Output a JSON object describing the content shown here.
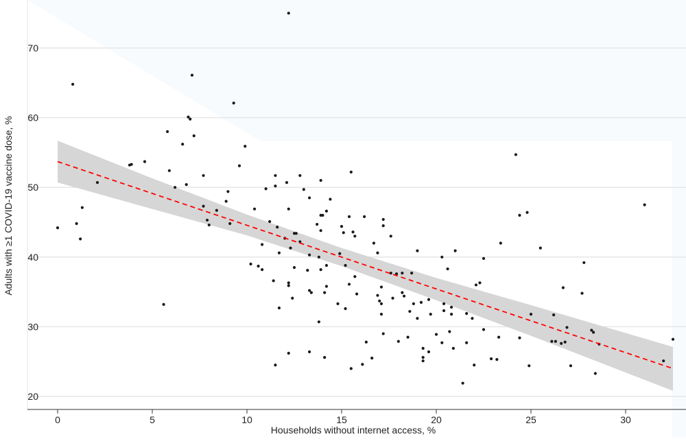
{
  "chart_data": {
    "type": "scatter",
    "title": "",
    "xlabel": "Households without internet access, %",
    "ylabel": "Adults with ≥1 COVID-19 vaccine dose, %",
    "xlim": [
      -1.6,
      34
    ],
    "ylim": [
      18.1,
      76.9
    ],
    "xticks": [
      0,
      5,
      10,
      15,
      20,
      25,
      30
    ],
    "yticks": [
      20,
      30,
      40,
      50,
      60,
      70
    ],
    "grid": "horizontal",
    "colors": {
      "points": "#1a1a1a",
      "fit_line": "#ff0000",
      "confidence_band": "#d6d6d6",
      "grid": "#e6e6e6"
    },
    "points": [
      [
        0.8,
        64.8
      ],
      [
        7.1,
        66.1
      ],
      [
        6.9,
        60.1
      ],
      [
        7.0,
        59.8
      ],
      [
        9.3,
        62.1
      ],
      [
        5.8,
        58.0
      ],
      [
        6.6,
        56.2
      ],
      [
        7.2,
        57.4
      ],
      [
        9.9,
        55.9
      ],
      [
        9.6,
        53.1
      ],
      [
        3.9,
        53.3
      ],
      [
        3.8,
        53.2
      ],
      [
        4.6,
        53.7
      ],
      [
        5.9,
        52.4
      ],
      [
        2.1,
        50.7
      ],
      [
        6.2,
        50.0
      ],
      [
        6.8,
        50.4
      ],
      [
        7.7,
        51.7
      ],
      [
        9.0,
        49.4
      ],
      [
        8.9,
        48.0
      ],
      [
        7.7,
        47.3
      ],
      [
        8.4,
        46.7
      ],
      [
        10.4,
        46.9
      ],
      [
        1.3,
        47.1
      ],
      [
        1.0,
        44.8
      ],
      [
        7.9,
        45.3
      ],
      [
        8.0,
        44.6
      ],
      [
        9.1,
        44.8
      ],
      [
        0.0,
        44.2
      ],
      [
        1.2,
        42.6
      ],
      [
        5.6,
        33.2
      ],
      [
        12.2,
        75.0
      ],
      [
        11.5,
        51.7
      ],
      [
        11.5,
        50.2
      ],
      [
        12.1,
        50.7
      ],
      [
        12.8,
        51.7
      ],
      [
        13.9,
        51.0
      ],
      [
        15.5,
        52.2
      ],
      [
        11.0,
        49.8
      ],
      [
        13.0,
        49.7
      ],
      [
        13.3,
        48.5
      ],
      [
        14.4,
        48.3
      ],
      [
        12.2,
        46.9
      ],
      [
        13.9,
        46.0
      ],
      [
        14.0,
        46.0
      ],
      [
        14.2,
        46.6
      ],
      [
        15.4,
        45.8
      ],
      [
        16.2,
        45.8
      ],
      [
        17.2,
        45.4
      ],
      [
        17.2,
        44.5
      ],
      [
        11.2,
        45.1
      ],
      [
        11.6,
        44.3
      ],
      [
        13.7,
        44.7
      ],
      [
        13.9,
        43.8
      ],
      [
        15.0,
        44.4
      ],
      [
        15.1,
        43.5
      ],
      [
        15.6,
        43.6
      ],
      [
        15.7,
        43.0
      ],
      [
        17.6,
        43.0
      ],
      [
        12.5,
        43.4
      ],
      [
        12.6,
        43.4
      ],
      [
        12.0,
        42.7
      ],
      [
        12.8,
        42.2
      ],
      [
        10.8,
        41.8
      ],
      [
        16.7,
        42.0
      ],
      [
        16.9,
        40.6
      ],
      [
        11.7,
        40.6
      ],
      [
        12.3,
        41.3
      ],
      [
        13.3,
        40.3
      ],
      [
        13.8,
        40.0
      ],
      [
        14.9,
        40.5
      ],
      [
        19.0,
        40.9
      ],
      [
        20.3,
        40.0
      ],
      [
        21.0,
        40.9
      ],
      [
        10.2,
        39.0
      ],
      [
        10.6,
        38.7
      ],
      [
        10.8,
        38.2
      ],
      [
        12.5,
        38.5
      ],
      [
        13.2,
        38.1
      ],
      [
        13.9,
        38.2
      ],
      [
        14.2,
        38.8
      ],
      [
        15.2,
        38.8
      ],
      [
        15.7,
        37.2
      ],
      [
        17.6,
        37.7
      ],
      [
        17.9,
        37.6
      ],
      [
        18.2,
        37.7
      ],
      [
        18.7,
        37.7
      ],
      [
        20.6,
        38.3
      ],
      [
        11.4,
        36.6
      ],
      [
        12.2,
        36.3
      ],
      [
        12.2,
        35.9
      ],
      [
        14.2,
        35.8
      ],
      [
        15.4,
        36.1
      ],
      [
        17.1,
        35.7
      ],
      [
        13.3,
        35.2
      ],
      [
        13.4,
        34.9
      ],
      [
        14.1,
        34.9
      ],
      [
        15.8,
        34.7
      ],
      [
        16.9,
        34.5
      ],
      [
        18.2,
        34.9
      ],
      [
        18.3,
        34.4
      ],
      [
        12.4,
        34.1
      ],
      [
        17.7,
        34.1
      ],
      [
        17.0,
        33.7
      ],
      [
        17.1,
        33.3
      ],
      [
        14.8,
        33.3
      ],
      [
        18.8,
        33.3
      ],
      [
        19.2,
        33.5
      ],
      [
        19.6,
        33.9
      ],
      [
        20.4,
        33.3
      ],
      [
        20.8,
        32.8
      ],
      [
        11.7,
        32.7
      ],
      [
        15.2,
        32.6
      ],
      [
        18.6,
        32.2
      ],
      [
        20.4,
        32.3
      ],
      [
        17.1,
        31.8
      ],
      [
        19.7,
        31.8
      ],
      [
        20.8,
        31.8
      ],
      [
        19.0,
        31.2
      ],
      [
        13.8,
        30.7
      ],
      [
        17.2,
        29.0
      ],
      [
        20.0,
        28.9
      ],
      [
        20.7,
        29.3
      ],
      [
        18.5,
        28.5
      ],
      [
        18.0,
        27.9
      ],
      [
        16.3,
        27.8
      ],
      [
        20.3,
        27.7
      ],
      [
        19.3,
        26.9
      ],
      [
        20.9,
        26.9
      ],
      [
        13.3,
        26.4
      ],
      [
        19.6,
        26.4
      ],
      [
        12.2,
        26.2
      ],
      [
        14.1,
        25.6
      ],
      [
        16.6,
        25.5
      ],
      [
        19.3,
        25.6
      ],
      [
        19.3,
        25.1
      ],
      [
        16.1,
        24.6
      ],
      [
        11.5,
        24.5
      ],
      [
        15.5,
        24.0
      ],
      [
        24.2,
        54.7
      ],
      [
        31.0,
        47.5
      ],
      [
        24.4,
        46.0
      ],
      [
        24.8,
        46.4
      ],
      [
        23.4,
        42.0
      ],
      [
        25.5,
        41.3
      ],
      [
        22.5,
        39.8
      ],
      [
        27.8,
        39.2
      ],
      [
        22.1,
        36.0
      ],
      [
        22.3,
        36.3
      ],
      [
        26.7,
        35.6
      ],
      [
        27.7,
        34.8
      ],
      [
        21.6,
        31.9
      ],
      [
        21.9,
        31.2
      ],
      [
        25.0,
        31.8
      ],
      [
        26.2,
        31.7
      ],
      [
        22.5,
        29.6
      ],
      [
        26.9,
        29.9
      ],
      [
        28.2,
        29.5
      ],
      [
        28.3,
        29.2
      ],
      [
        23.3,
        28.5
      ],
      [
        24.4,
        28.4
      ],
      [
        21.6,
        27.7
      ],
      [
        26.1,
        27.9
      ],
      [
        26.3,
        27.9
      ],
      [
        26.6,
        27.6
      ],
      [
        26.8,
        27.8
      ],
      [
        28.6,
        27.5
      ],
      [
        32.5,
        28.2
      ],
      [
        22.9,
        25.4
      ],
      [
        23.2,
        25.3
      ],
      [
        22.0,
        24.5
      ],
      [
        24.9,
        24.4
      ],
      [
        27.1,
        24.4
      ],
      [
        32.0,
        25.1
      ],
      [
        28.4,
        23.3
      ],
      [
        21.4,
        21.9
      ]
    ],
    "fit_line": {
      "style": "dashed",
      "x": [
        0,
        32.5
      ],
      "y": [
        53.7,
        24.0
      ]
    },
    "confidence_band": {
      "x": [
        0,
        5,
        10,
        15,
        20,
        25,
        32.5
      ],
      "lower": [
        50.7,
        46.9,
        43.1,
        38.7,
        33.8,
        28.7,
        20.8
      ],
      "upper": [
        56.7,
        51.3,
        46.1,
        41.3,
        37.0,
        33.1,
        27.1
      ]
    }
  }
}
